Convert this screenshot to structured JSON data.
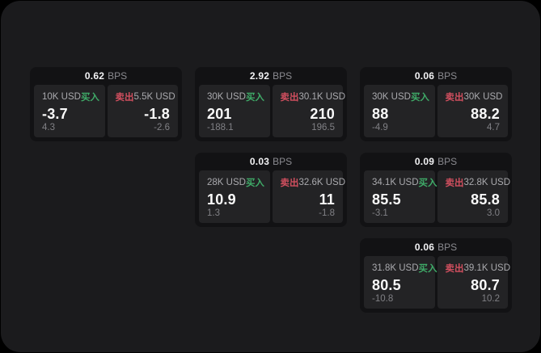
{
  "colors": {
    "panel_bg": "#1b1b1d",
    "card_bg": "#121214",
    "subcard_bg": "#232325",
    "buy_green": "#3fab68",
    "sell_red": "#d14f5f"
  },
  "labels": {
    "bps_unit": "BPS",
    "buy": "买入",
    "sell": "卖出"
  },
  "cards": [
    {
      "row": 1,
      "col": 1,
      "bps": "0.62",
      "buy": {
        "notional": "10K USD",
        "price": "-3.7",
        "delta": "4.3"
      },
      "sell": {
        "notional": "5.5K USD",
        "price": "-1.8",
        "delta": "-2.6"
      }
    },
    {
      "row": 1,
      "col": 2,
      "bps": "2.92",
      "buy": {
        "notional": "30K USD",
        "price": "201",
        "delta": "-188.1"
      },
      "sell": {
        "notional": "30.1K USD",
        "price": "210",
        "delta": "196.5"
      }
    },
    {
      "row": 1,
      "col": 3,
      "bps": "0.06",
      "buy": {
        "notional": "30K USD",
        "price": "88",
        "delta": "-4.9"
      },
      "sell": {
        "notional": "30K USD",
        "price": "88.2",
        "delta": "4.7"
      }
    },
    {
      "row": 2,
      "col": 2,
      "bps": "0.03",
      "buy": {
        "notional": "28K USD",
        "price": "10.9",
        "delta": "1.3"
      },
      "sell": {
        "notional": "32.6K USD",
        "price": "11",
        "delta": "-1.8"
      }
    },
    {
      "row": 2,
      "col": 3,
      "bps": "0.09",
      "buy": {
        "notional": "34.1K USD",
        "price": "85.5",
        "delta": "-3.1"
      },
      "sell": {
        "notional": "32.8K USD",
        "price": "85.8",
        "delta": "3.0"
      }
    },
    {
      "row": 3,
      "col": 3,
      "bps": "0.06",
      "buy": {
        "notional": "31.8K USD",
        "price": "80.5",
        "delta": "-10.8"
      },
      "sell": {
        "notional": "39.1K USD",
        "price": "80.7",
        "delta": "10.2"
      }
    }
  ]
}
